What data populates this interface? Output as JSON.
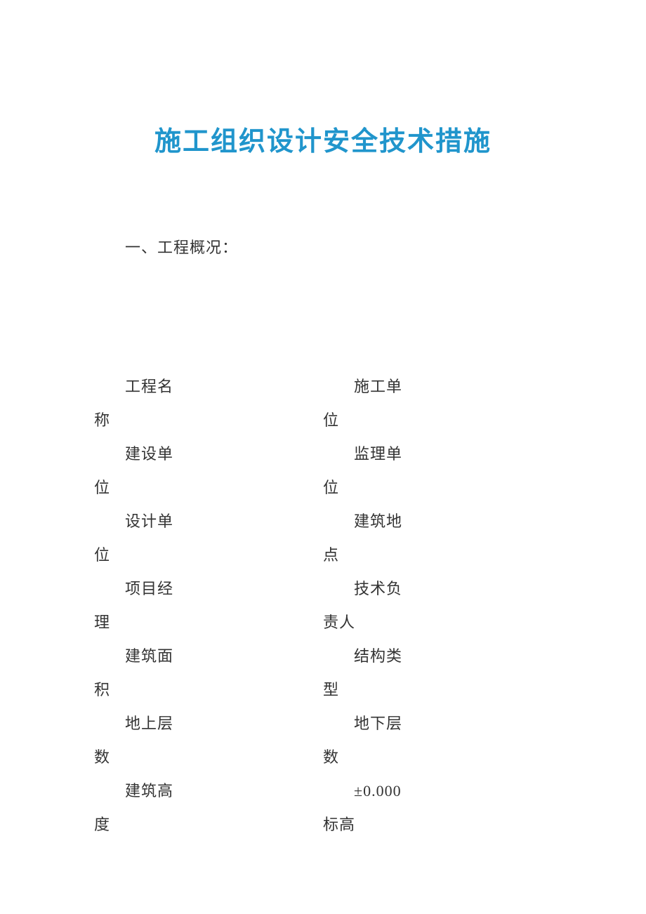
{
  "document": {
    "title": "施工组织设计安全技术措施",
    "title_color": "#2095cc",
    "title_fontsize": 38,
    "section_heading": "一、工程概况：",
    "body_fontsize": 22,
    "body_color": "#333333",
    "background_color": "#ffffff",
    "line_height": 48,
    "fields": {
      "left": [
        "工程名称",
        "建设单位",
        "设计单位",
        "项目经理",
        "建筑面积",
        "地上层数",
        "建筑高度"
      ],
      "right": [
        "施工单位",
        "监理单位",
        "建筑地点",
        "技术负责人",
        "结构类型",
        "地下层数",
        "±0.000标高"
      ]
    },
    "left_labels": {
      "l0a": "工程名",
      "l0b": "称",
      "l1a": "建设单",
      "l1b": "位",
      "l2a": "设计单",
      "l2b": "位",
      "l3a": "项目经",
      "l3b": "理",
      "l4a": "建筑面",
      "l4b": "积",
      "l5a": "地上层",
      "l5b": "数",
      "l6a": "建筑高",
      "l6b": "度"
    },
    "right_labels": {
      "r0a": "施工单",
      "r0b": "位",
      "r1a": "监理单",
      "r1b": "位",
      "r2a": "建筑地",
      "r2b": "点",
      "r3a": "技术负",
      "r3b": "责人",
      "r4a": "结构类",
      "r4b": "型",
      "r5a": "地下层",
      "r5b": "数",
      "r6a": "±0.000",
      "r6b": "标高"
    }
  }
}
